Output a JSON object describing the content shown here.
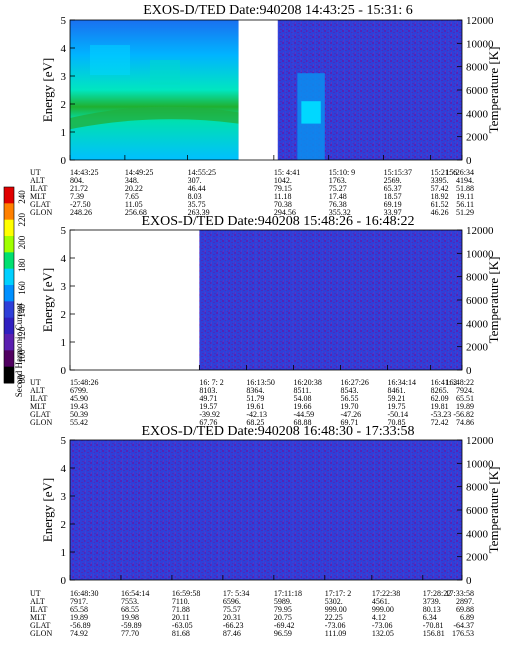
{
  "colors": {
    "background": "#2f3fd8",
    "noise": "#5a1fb0",
    "hot_high": "#00c8ff",
    "hot_mid": "#00e0a0",
    "hot_core": "#20b020",
    "gap": "#ffffff"
  },
  "colorbar": {
    "label": "Second Harmonic Current",
    "ticks": [
      "240",
      "220",
      "200",
      "180",
      "160",
      "140",
      "120",
      "100",
      "80"
    ],
    "colors": [
      "#e00000",
      "#ff8000",
      "#ffff00",
      "#a0ff00",
      "#00e070",
      "#00d0ff",
      "#0090ff",
      "#2f3fd8",
      "#3020c0",
      "#5a1fb0",
      "#500060",
      "#000000"
    ]
  },
  "y_left": {
    "label": "Energy [eV]",
    "ticks": [
      "0",
      "1",
      "2",
      "3",
      "4",
      "5"
    ]
  },
  "y_right": {
    "label": "Temperature [K]",
    "ticks": [
      "0",
      "2000",
      "4000",
      "6000",
      "8000",
      "10000",
      "12000"
    ]
  },
  "row_labels": [
    "UT",
    "ALT",
    "ILAT",
    "MLT",
    "GLAT",
    "GLON"
  ],
  "chart_data": [
    {
      "type": "heatmap",
      "title": "EXOS-D/TED   Date:940208  14:43:25 - 15:31: 6",
      "ylim": [
        0,
        5
      ],
      "y2lim": [
        0,
        12000
      ],
      "gap": [
        0.43,
        0.53
      ],
      "hot_region": [
        0.0,
        0.43
      ],
      "hot_region2": [
        0.58,
        0.65
      ],
      "columns": [
        {
          "pos": 0.0,
          "values": [
            "14:43:25",
            "804.",
            "21.72",
            "7.39",
            "-27.50",
            "248.26"
          ]
        },
        {
          "pos": 0.14,
          "values": [
            "14:49:25",
            "348.",
            "20.22",
            "7.65",
            "11.05",
            "256.68"
          ]
        },
        {
          "pos": 0.3,
          "values": [
            "14:55:25",
            "307.",
            "46.44",
            "8.03",
            "35.75",
            "263.39"
          ]
        },
        {
          "pos": 0.52,
          "values": [
            "15: 4:41",
            "1042.",
            "79.15",
            "11.18",
            "70.38",
            "294.56"
          ]
        },
        {
          "pos": 0.66,
          "values": [
            "15:10: 9",
            "1763.",
            "75.27",
            "17.48",
            "76.38",
            "355.32"
          ]
        },
        {
          "pos": 0.8,
          "values": [
            "15:15:37",
            "2569.",
            "65.37",
            "18.57",
            "69.19",
            "33.97"
          ]
        },
        {
          "pos": 0.92,
          "values": [
            "15:21: 6",
            "3395.",
            "57.42",
            "18.92",
            "61.52",
            "46.26"
          ]
        },
        {
          "pos": 1.05,
          "values": [
            "15:26:34",
            "4194.",
            "51.88",
            "19.11",
            "56.11",
            "51.29"
          ]
        }
      ]
    },
    {
      "type": "heatmap",
      "title": "EXOS-D/TED   Date:940208  15:48:26 - 16:48:22",
      "ylim": [
        0,
        5
      ],
      "y2lim": [
        0,
        12000
      ],
      "gap": [
        0.0,
        0.33
      ],
      "columns": [
        {
          "pos": 0.0,
          "values": [
            "15:48:26",
            "6799.",
            "45.90",
            "19.43",
            "50.39",
            "55.42"
          ]
        },
        {
          "pos": 0.33,
          "values": [
            "16: 7: 2",
            "8103.",
            "49.71",
            "19.57",
            "-39.92",
            "67.76"
          ]
        },
        {
          "pos": 0.45,
          "values": [
            "16:13:50",
            "8364.",
            "51.79",
            "19.61",
            "-42.13",
            "68.25"
          ]
        },
        {
          "pos": 0.57,
          "values": [
            "16:20:38",
            "8511.",
            "54.08",
            "19.66",
            "-44.59",
            "68.88"
          ]
        },
        {
          "pos": 0.69,
          "values": [
            "16:27:26",
            "8543.",
            "56.55",
            "19.70",
            "-47.26",
            "69.71"
          ]
        },
        {
          "pos": 0.81,
          "values": [
            "16:34:14",
            "8461.",
            "59.21",
            "19.75",
            "-50.14",
            "70.85"
          ]
        },
        {
          "pos": 0.92,
          "values": [
            "16:41: 2",
            "8265.",
            "62.09",
            "19.81",
            "-53.23",
            "72.42"
          ]
        },
        {
          "pos": 1.04,
          "values": [
            "16:48:22",
            "7924.",
            "65.51",
            "19.89",
            "-56.82",
            "74.86"
          ]
        }
      ]
    },
    {
      "type": "heatmap",
      "title": "EXOS-D/TED   Date:940208  16:48:30 - 17:33:58",
      "ylim": [
        0,
        5
      ],
      "y2lim": [
        0,
        12000
      ],
      "columns": [
        {
          "pos": 0.0,
          "values": [
            "16:48:30",
            "7917.",
            "65.58",
            "19.89",
            "-56.89",
            "74.92"
          ]
        },
        {
          "pos": 0.13,
          "values": [
            "16:54:14",
            "7553.",
            "68.55",
            "19.98",
            "-59.89",
            "77.70"
          ]
        },
        {
          "pos": 0.26,
          "values": [
            "16:59:58",
            "7110.",
            "71.88",
            "20.11",
            "-63.05",
            "81.68"
          ]
        },
        {
          "pos": 0.39,
          "values": [
            "17: 5:34",
            "6596.",
            "75.57",
            "20.31",
            "-66.23",
            "87.46"
          ]
        },
        {
          "pos": 0.52,
          "values": [
            "17:11:18",
            "5989.",
            "79.95",
            "20.75",
            "-69.42",
            "96.59"
          ]
        },
        {
          "pos": 0.65,
          "values": [
            "17:17: 2",
            "5302.",
            "999.00",
            "22.25",
            "-73.06",
            "111.09"
          ]
        },
        {
          "pos": 0.77,
          "values": [
            "17:22:38",
            "4561.",
            "999.00",
            "4.12",
            "-73.06",
            "132.05"
          ]
        },
        {
          "pos": 0.9,
          "values": [
            "17:28:22",
            "3739.",
            "80.13",
            "6.34",
            "-70.81",
            "156.81"
          ]
        },
        {
          "pos": 1.03,
          "values": [
            "17:33:58",
            "2897.",
            "69.88",
            "6.89",
            "-64.37",
            "176.53"
          ]
        }
      ]
    }
  ]
}
